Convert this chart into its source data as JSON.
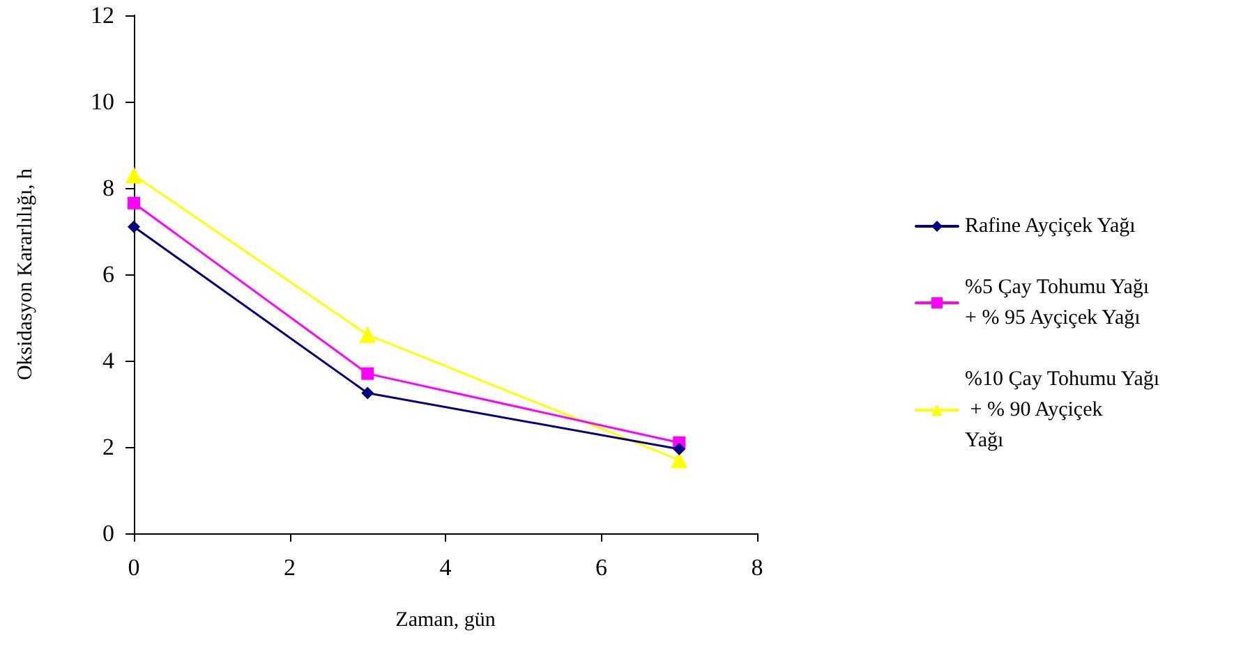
{
  "chart_data": {
    "type": "line",
    "xlabel": "Zaman, gün",
    "ylabel": "Oksidasyon Kararlılığı, h",
    "xlim": [
      0,
      8
    ],
    "xticks": [
      0,
      2,
      4,
      6,
      8
    ],
    "ylim": [
      0,
      12
    ],
    "yticks": [
      0,
      2,
      4,
      6,
      8,
      10,
      12
    ],
    "grid": false,
    "legend": "right",
    "line_style": "solid",
    "x": [
      0,
      3,
      7
    ],
    "series": [
      {
        "name": "Rafine Ayçiçek Yağı",
        "color": "#000080",
        "marker": "diamond",
        "values": [
          7.1,
          3.25,
          1.95
        ]
      },
      {
        "name": "%5 Çay Tohumu Yağı + % 95 Ayçiçek Yağı",
        "color": "#ff00ff",
        "marker": "square",
        "values": [
          7.65,
          3.7,
          2.1
        ]
      },
      {
        "name": "%10 Çay Tohumu Yağı + % 90 Ayçiçek Yağı",
        "color": "#ffff00",
        "marker": "triangle",
        "values": [
          8.3,
          4.6,
          1.7
        ]
      }
    ]
  }
}
